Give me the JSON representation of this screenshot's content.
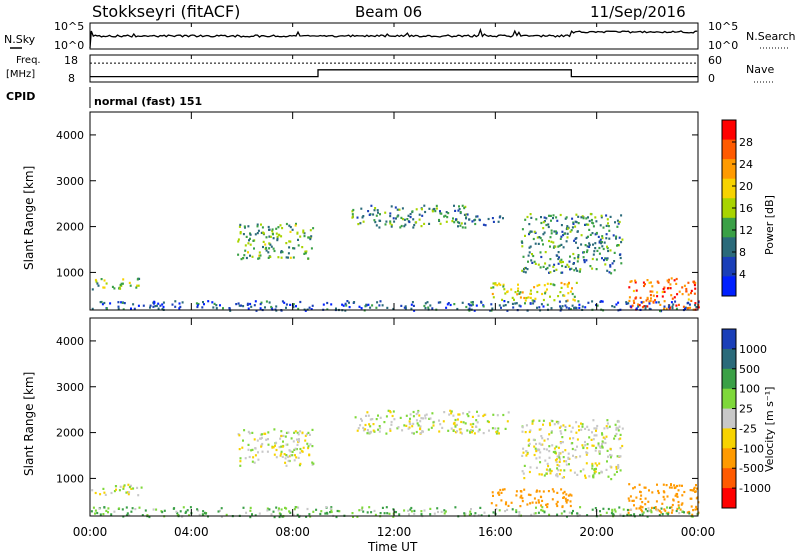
{
  "header": {
    "station": "Stokkseyri (fitACF)",
    "beam": "Beam 06",
    "date": "11/Sep/2016"
  },
  "noise_panel": {
    "left_label": "N.Sky",
    "right_label": "N.Search",
    "left_ticks": [
      "10^5",
      "10^0"
    ],
    "right_ticks": [
      "10^5",
      "10^0"
    ]
  },
  "freq_panel": {
    "left_label_1": "Freq.",
    "left_label_2": "[MHz]",
    "right_label": "Nave",
    "left_ticks": [
      "18",
      "8"
    ],
    "right_ticks": [
      "60",
      "0"
    ]
  },
  "cpid": {
    "label": "CPID",
    "text": "normal (fast) 151"
  },
  "x_axis": {
    "label": "Time UT",
    "ticks": [
      "00:00",
      "04:00",
      "08:00",
      "12:00",
      "16:00",
      "20:00",
      "00:00"
    ]
  },
  "power_panel": {
    "ylabel": "Slant Range [km]",
    "yticks": [
      "4000",
      "3000",
      "2000",
      "1000"
    ],
    "colorbar_label": "Power [dB]",
    "colorbar_ticks": [
      "28",
      "24",
      "20",
      "16",
      "12",
      "8",
      "4"
    ],
    "colorbar_colors": [
      "#ff0000",
      "#ff5a00",
      "#ff9a00",
      "#f7d300",
      "#a8d400",
      "#3aa046",
      "#2a6a7a",
      "#1a3fb8",
      "#0020ff"
    ]
  },
  "velocity_panel": {
    "ylabel": "Slant Range [km]",
    "yticks": [
      "4000",
      "3000",
      "2000",
      "1000"
    ],
    "colorbar_label": "Velocity [m s⁻¹]",
    "colorbar_ticks": [
      "1000",
      "500",
      "100",
      "25",
      "-25",
      "-100",
      "-500",
      "-1000"
    ],
    "colorbar_colors": [
      "#1a3fb8",
      "#2a6a7a",
      "#3aa046",
      "#7ed83a",
      "#c8c8c8",
      "#f7d300",
      "#ff9a00",
      "#ff5a00",
      "#ff0000"
    ]
  },
  "chart_data": {
    "type": "heatmap",
    "x_range_hours": [
      0,
      24
    ],
    "y_range_km": [
      180,
      4500
    ],
    "power_regions": [
      {
        "t0": 0.0,
        "t1": 2.0,
        "r0": 650,
        "r1": 900,
        "db": 16
      },
      {
        "t0": 5.8,
        "t1": 8.8,
        "r0": 1300,
        "r1": 2100,
        "db": 14
      },
      {
        "t0": 10.3,
        "t1": 15.0,
        "r0": 2000,
        "r1": 2500,
        "db": 12
      },
      {
        "t0": 15.0,
        "t1": 16.5,
        "r0": 2050,
        "r1": 2250,
        "db": 10
      },
      {
        "t0": 15.8,
        "t1": 19.2,
        "r0": 400,
        "r1": 800,
        "db": 18
      },
      {
        "t0": 17.0,
        "t1": 21.0,
        "r0": 1000,
        "r1": 2300,
        "db": 12
      },
      {
        "t0": 21.2,
        "t1": 24.0,
        "r0": 200,
        "r1": 900,
        "db": 26
      },
      {
        "t0": 0.0,
        "t1": 24.0,
        "r0": 180,
        "r1": 400,
        "db": 8
      }
    ],
    "velocity_regions": [
      {
        "t0": 0.0,
        "t1": 2.0,
        "r0": 650,
        "r1": 900,
        "v": 0
      },
      {
        "t0": 5.8,
        "t1": 8.8,
        "r0": 1300,
        "r1": 2100,
        "v": 0
      },
      {
        "t0": 10.3,
        "t1": 16.5,
        "r0": 2000,
        "r1": 2500,
        "v": 0
      },
      {
        "t0": 15.8,
        "t1": 19.0,
        "r0": 400,
        "r1": 800,
        "v": -300
      },
      {
        "t0": 17.0,
        "t1": 21.0,
        "r0": 1000,
        "r1": 2300,
        "v": 0
      },
      {
        "t0": 21.2,
        "t1": 24.0,
        "r0": 200,
        "r1": 900,
        "v": -300
      },
      {
        "t0": 0.0,
        "t1": 24.0,
        "r0": 180,
        "r1": 400,
        "v": 60
      }
    ],
    "freq_mhz": [
      {
        "t0": 0.0,
        "t1": 9.0,
        "f": 10.0
      },
      {
        "t0": 9.0,
        "t1": 19.0,
        "f": 12.5
      },
      {
        "t0": 19.0,
        "t1": 24.0,
        "f": 10.0
      }
    ],
    "nave_level": 42
  }
}
